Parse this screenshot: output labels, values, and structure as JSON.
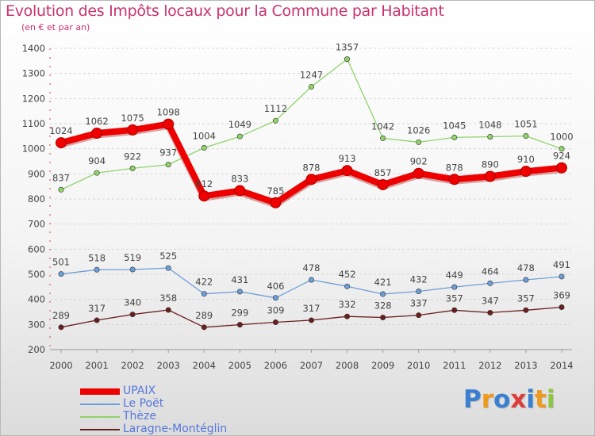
{
  "title": "Evolution des Impôts locaux pour la Commune par Habitant",
  "subtitle": "(en € et par an)",
  "logo": {
    "text": "Proxiti",
    "colors": [
      "#3a7fd0",
      "#f09a1a",
      "#3a7fd0",
      "#e03b3b",
      "#3a7fd0",
      "#f09a1a",
      "#8dc63f"
    ]
  },
  "chart_data": {
    "type": "line",
    "x": [
      "2000",
      "2001",
      "2002",
      "2003",
      "2004",
      "2005",
      "2006",
      "2007",
      "2008",
      "2009",
      "2010",
      "2011",
      "2012",
      "2013",
      "2014"
    ],
    "ylim": [
      200,
      1400
    ],
    "yticks": [
      200,
      300,
      400,
      500,
      600,
      700,
      800,
      900,
      1000,
      1100,
      1200,
      1300,
      1400
    ],
    "grid": "horizontal dashed",
    "legend_position": "bottom-left",
    "series": [
      {
        "name": "UPAIX",
        "color": "#ee0000",
        "emphasis": true,
        "values": [
          1024,
          1062,
          1075,
          1098,
          812,
          833,
          785,
          878,
          913,
          857,
          902,
          878,
          890,
          910,
          924
        ]
      },
      {
        "name": "Le Poët",
        "color": "#6c9fd8",
        "emphasis": false,
        "values": [
          501,
          518,
          519,
          525,
          422,
          431,
          406,
          478,
          452,
          421,
          432,
          449,
          464,
          478,
          491
        ]
      },
      {
        "name": "Thèze",
        "color": "#8fd36a",
        "emphasis": false,
        "values": [
          837,
          904,
          922,
          937,
          1004,
          1049,
          1112,
          1247,
          1357,
          1042,
          1026,
          1045,
          1048,
          1051,
          1000
        ]
      },
      {
        "name": "Laragne-Montéglin",
        "color": "#6b1e1e",
        "emphasis": false,
        "values": [
          289,
          317,
          340,
          358,
          289,
          299,
          309,
          317,
          332,
          328,
          337,
          357,
          347,
          357,
          369
        ]
      }
    ]
  }
}
